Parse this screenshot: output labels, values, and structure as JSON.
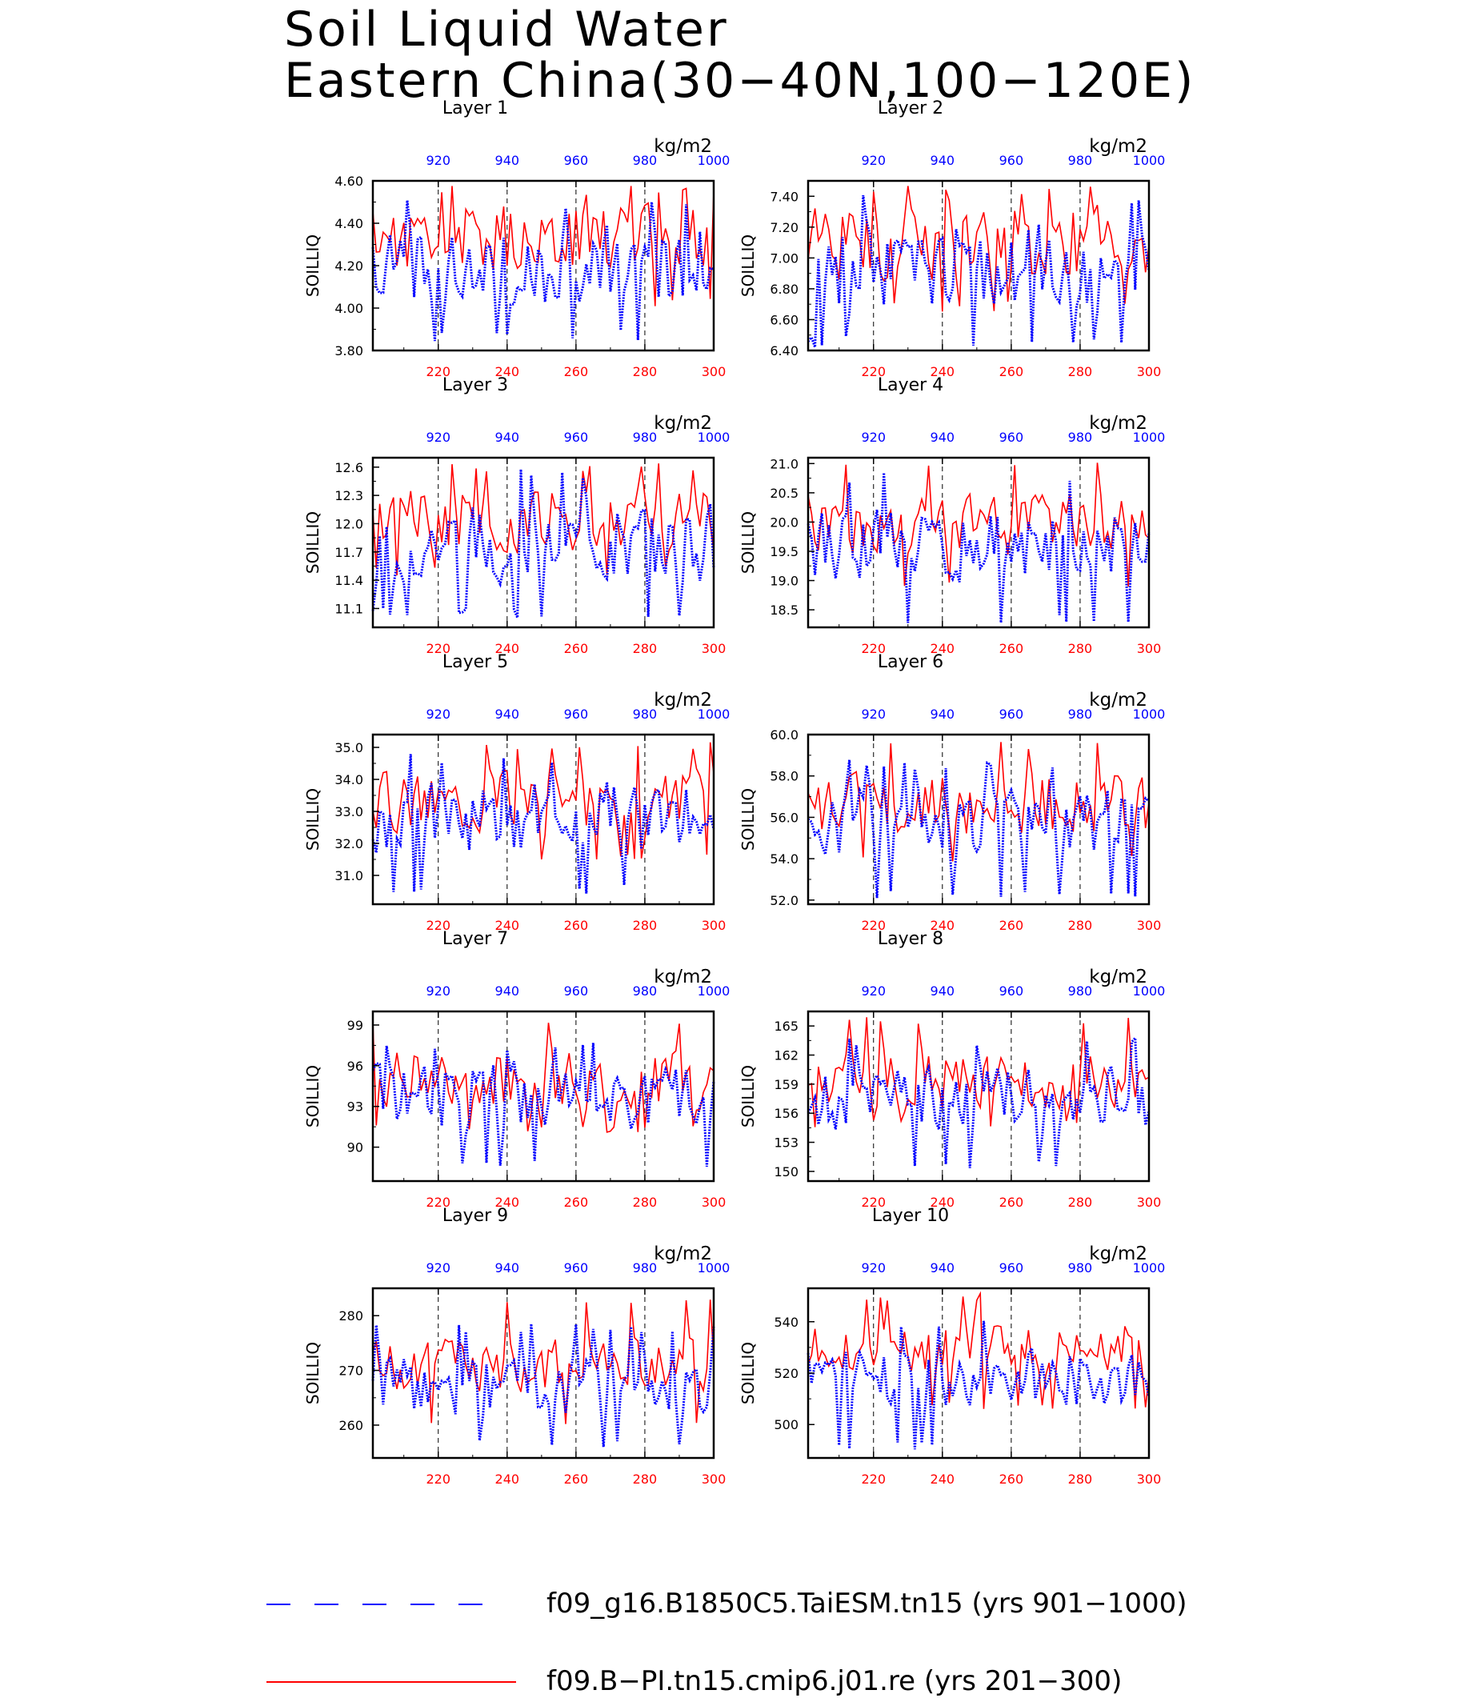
{
  "title": {
    "line1": "Soil Liquid Water",
    "line2": "Eastern China(30−40N,100−120E)"
  },
  "colors": {
    "red_series": "#ff0000",
    "blue_series": "#0000ff",
    "frame": "#000000"
  },
  "legend": {
    "blue_label": "f09_g16.B1850C5.TaiESM.tn15 (yrs 901−1000)",
    "red_label": "f09.B−PI.tn15.cmip6.j01.re (yrs 201−300)"
  },
  "chart_data": [
    {
      "type": "line",
      "title": "Layer 1",
      "ylabel": "SOILLIQ",
      "units": "kg/m2",
      "ylim": [
        3.8,
        4.6
      ],
      "yticks": [
        "4.60",
        "4.40",
        "4.20",
        "4.00",
        "3.80"
      ],
      "ytick_values": [
        4.6,
        4.4,
        4.2,
        4.0,
        3.8
      ],
      "x_bottom": {
        "range": [
          201,
          300
        ],
        "ticks": [
          220,
          240,
          260,
          280,
          300
        ]
      },
      "x_top": {
        "range": [
          901,
          1000
        ],
        "ticks": [
          920,
          940,
          960,
          980,
          1000
        ]
      },
      "series": [
        {
          "name": "f09.B−PI.tn15.cmip6.j01.re (yrs 201−300)",
          "color": "#ff0000",
          "style": "solid",
          "base": 4.33,
          "amp": 0.12,
          "min": 4.0,
          "max": 4.58,
          "seed": 11
        },
        {
          "name": "f09_g16.B1850C5.TaiESM.tn15 (yrs 901−1000)",
          "color": "#0000ff",
          "style": "dashed",
          "base": 4.2,
          "amp": 0.14,
          "min": 3.84,
          "max": 4.52,
          "seed": 12
        }
      ]
    },
    {
      "type": "line",
      "title": "Layer 2",
      "ylabel": "SOILLIQ",
      "units": "kg/m2",
      "ylim": [
        6.4,
        7.5
      ],
      "yticks": [
        "7.40",
        "7.20",
        "7.00",
        "6.80",
        "6.60",
        "6.40"
      ],
      "ytick_values": [
        7.4,
        7.2,
        7.0,
        6.8,
        6.6,
        6.4
      ],
      "x_bottom": {
        "range": [
          201,
          300
        ],
        "ticks": [
          220,
          240,
          260,
          280,
          300
        ]
      },
      "x_top": {
        "range": [
          901,
          1000
        ],
        "ticks": [
          920,
          940,
          960,
          980,
          1000
        ]
      },
      "series": [
        {
          "name": "f09.B−PI.tn15.cmip6.j01.re (yrs 201−300)",
          "color": "#ff0000",
          "style": "solid",
          "base": 7.1,
          "amp": 0.18,
          "min": 6.65,
          "max": 7.48,
          "seed": 21
        },
        {
          "name": "f09_g16.B1850C5.TaiESM.tn15 (yrs 901−1000)",
          "color": "#0000ff",
          "style": "dashed",
          "base": 6.95,
          "amp": 0.2,
          "min": 6.42,
          "max": 7.42,
          "seed": 22
        }
      ]
    },
    {
      "type": "line",
      "title": "Layer 3",
      "ylabel": "SOILLIQ",
      "units": "kg/m2",
      "ylim": [
        10.9,
        12.7
      ],
      "yticks": [
        "12.6",
        "12.3",
        "12.0",
        "11.7",
        "11.4",
        "11.1"
      ],
      "ytick_values": [
        12.6,
        12.3,
        12.0,
        11.7,
        11.4,
        11.1
      ],
      "x_bottom": {
        "range": [
          201,
          300
        ],
        "ticks": [
          220,
          240,
          260,
          280,
          300
        ]
      },
      "x_top": {
        "range": [
          901,
          1000
        ],
        "ticks": [
          920,
          940,
          960,
          980,
          1000
        ]
      },
      "series": [
        {
          "name": "f09.B−PI.tn15.cmip6.j01.re (yrs 201−300)",
          "color": "#ff0000",
          "style": "solid",
          "base": 12.05,
          "amp": 0.25,
          "min": 11.45,
          "max": 12.65,
          "seed": 31
        },
        {
          "name": "f09_g16.B1850C5.TaiESM.tn15 (yrs 901−1000)",
          "color": "#0000ff",
          "style": "dashed",
          "base": 11.8,
          "amp": 0.3,
          "min": 11.0,
          "max": 12.58,
          "seed": 32
        }
      ]
    },
    {
      "type": "line",
      "title": "Layer 4",
      "ylabel": "SOILLIQ",
      "units": "kg/m2",
      "ylim": [
        18.2,
        21.1
      ],
      "yticks": [
        "21.0",
        "20.5",
        "20.0",
        "19.5",
        "19.0",
        "18.5"
      ],
      "ytick_values": [
        21.0,
        20.5,
        20.0,
        19.5,
        19.0,
        18.5
      ],
      "x_bottom": {
        "range": [
          201,
          300
        ],
        "ticks": [
          220,
          240,
          260,
          280,
          300
        ]
      },
      "x_top": {
        "range": [
          901,
          1000
        ],
        "ticks": [
          920,
          940,
          960,
          980,
          1000
        ]
      },
      "series": [
        {
          "name": "f09.B−PI.tn15.cmip6.j01.re (yrs 201−300)",
          "color": "#ff0000",
          "style": "solid",
          "base": 19.95,
          "amp": 0.4,
          "min": 18.85,
          "max": 21.05,
          "seed": 41
        },
        {
          "name": "f09_g16.B1850C5.TaiESM.tn15 (yrs 901−1000)",
          "color": "#0000ff",
          "style": "dashed",
          "base": 19.6,
          "amp": 0.45,
          "min": 18.25,
          "max": 20.85,
          "seed": 42
        }
      ]
    },
    {
      "type": "line",
      "title": "Layer 5",
      "ylabel": "SOILLIQ",
      "units": "kg/m2",
      "ylim": [
        30.1,
        35.4
      ],
      "yticks": [
        "35.0",
        "34.0",
        "33.0",
        "32.0",
        "31.0"
      ],
      "ytick_values": [
        35.0,
        34.0,
        33.0,
        32.0,
        31.0
      ],
      "x_bottom": {
        "range": [
          201,
          300
        ],
        "ticks": [
          220,
          240,
          260,
          280,
          300
        ]
      },
      "x_top": {
        "range": [
          901,
          1000
        ],
        "ticks": [
          920,
          940,
          960,
          980,
          1000
        ]
      },
      "series": [
        {
          "name": "f09.B−PI.tn15.cmip6.j01.re (yrs 201−300)",
          "color": "#ff0000",
          "style": "solid",
          "base": 33.3,
          "amp": 0.7,
          "min": 31.5,
          "max": 35.2,
          "seed": 51
        },
        {
          "name": "f09_g16.B1850C5.TaiESM.tn15 (yrs 901−1000)",
          "color": "#0000ff",
          "style": "dashed",
          "base": 32.8,
          "amp": 0.8,
          "min": 30.4,
          "max": 34.8,
          "seed": 52
        }
      ]
    },
    {
      "type": "line",
      "title": "Layer 6",
      "ylabel": "SOILLIQ",
      "units": "kg/m2",
      "ylim": [
        51.8,
        60.0
      ],
      "yticks": [
        "60.0",
        "58.0",
        "56.0",
        "54.0",
        "52.0"
      ],
      "ytick_values": [
        60.0,
        58.0,
        56.0,
        54.0,
        52.0
      ],
      "x_bottom": {
        "range": [
          201,
          300
        ],
        "ticks": [
          220,
          240,
          260,
          280,
          300
        ]
      },
      "x_top": {
        "range": [
          901,
          1000
        ],
        "ticks": [
          920,
          940,
          960,
          980,
          1000
        ]
      },
      "series": [
        {
          "name": "f09.B−PI.tn15.cmip6.j01.re (yrs 201−300)",
          "color": "#ff0000",
          "style": "solid",
          "base": 56.6,
          "amp": 1.1,
          "min": 53.8,
          "max": 59.7,
          "seed": 61
        },
        {
          "name": "f09_g16.B1850C5.TaiESM.tn15 (yrs 901−1000)",
          "color": "#0000ff",
          "style": "dashed",
          "base": 55.8,
          "amp": 1.2,
          "min": 52.1,
          "max": 58.8,
          "seed": 62
        }
      ]
    },
    {
      "type": "line",
      "title": "Layer 7",
      "ylabel": "SOILLIQ",
      "units": "kg/m2",
      "ylim": [
        87.5,
        100.0
      ],
      "yticks": [
        "99",
        "96",
        "93",
        "90"
      ],
      "ytick_values": [
        99,
        96,
        93,
        90
      ],
      "x_bottom": {
        "range": [
          201,
          300
        ],
        "ticks": [
          220,
          240,
          260,
          280,
          300
        ]
      },
      "x_top": {
        "range": [
          901,
          1000
        ],
        "ticks": [
          920,
          940,
          960,
          980,
          1000
        ]
      },
      "series": [
        {
          "name": "f09.B−PI.tn15.cmip6.j01.re (yrs 201−300)",
          "color": "#ff0000",
          "style": "solid",
          "base": 95.0,
          "amp": 1.5,
          "min": 91.0,
          "max": 99.6,
          "seed": 71
        },
        {
          "name": "f09_g16.B1850C5.TaiESM.tn15 (yrs 901−1000)",
          "color": "#0000ff",
          "style": "dashed",
          "base": 93.8,
          "amp": 1.8,
          "min": 88.3,
          "max": 97.8,
          "seed": 72
        }
      ]
    },
    {
      "type": "line",
      "title": "Layer 8",
      "ylabel": "SOILLIQ",
      "units": "kg/m2",
      "ylim": [
        149.0,
        166.5
      ],
      "yticks": [
        "165",
        "162",
        "159",
        "156",
        "153",
        "150"
      ],
      "ytick_values": [
        165,
        162,
        159,
        156,
        153,
        150
      ],
      "x_bottom": {
        "range": [
          201,
          300
        ],
        "ticks": [
          220,
          240,
          260,
          280,
          300
        ]
      },
      "x_top": {
        "range": [
          901,
          1000
        ],
        "ticks": [
          920,
          940,
          960,
          980,
          1000
        ]
      },
      "series": [
        {
          "name": "f09.B−PI.tn15.cmip6.j01.re (yrs 201−300)",
          "color": "#ff0000",
          "style": "solid",
          "base": 159.3,
          "amp": 2.0,
          "min": 154.5,
          "max": 166.0,
          "seed": 81
        },
        {
          "name": "f09_g16.B1850C5.TaiESM.tn15 (yrs 901−1000)",
          "color": "#0000ff",
          "style": "dashed",
          "base": 157.5,
          "amp": 2.3,
          "min": 150.1,
          "max": 163.8,
          "seed": 82
        }
      ]
    },
    {
      "type": "line",
      "title": "Layer 9",
      "ylabel": "SOILLIQ",
      "units": "kg/m2",
      "ylim": [
        254.0,
        285.0
      ],
      "yticks": [
        "280",
        "270",
        "260"
      ],
      "ytick_values": [
        280,
        270,
        260
      ],
      "x_bottom": {
        "range": [
          201,
          300
        ],
        "ticks": [
          220,
          240,
          260,
          280,
          300
        ]
      },
      "x_top": {
        "range": [
          901,
          1000
        ],
        "ticks": [
          920,
          940,
          960,
          980,
          1000
        ]
      },
      "series": [
        {
          "name": "f09.B−PI.tn15.cmip6.j01.re (yrs 201−300)",
          "color": "#ff0000",
          "style": "solid",
          "base": 271.0,
          "amp": 3.5,
          "min": 259.5,
          "max": 283.5,
          "seed": 91
        },
        {
          "name": "f09_g16.B1850C5.TaiESM.tn15 (yrs 901−1000)",
          "color": "#0000ff",
          "style": "dashed",
          "base": 267.0,
          "amp": 3.8,
          "min": 256.0,
          "max": 278.5,
          "seed": 92
        }
      ]
    },
    {
      "type": "line",
      "title": "Layer 10",
      "ylabel": "SOILLIQ",
      "units": "kg/m2",
      "ylim": [
        487.0,
        553.0
      ],
      "yticks": [
        "540",
        "520",
        "500"
      ],
      "ytick_values": [
        540,
        520,
        500
      ],
      "x_bottom": {
        "range": [
          201,
          300
        ],
        "ticks": [
          220,
          240,
          260,
          280,
          300
        ]
      },
      "x_top": {
        "range": [
          901,
          1000
        ],
        "ticks": [
          920,
          940,
          960,
          980,
          1000
        ]
      },
      "series": [
        {
          "name": "f09.B−PI.tn15.cmip6.j01.re (yrs 201−300)",
          "color": "#ff0000",
          "style": "solid",
          "base": 530.0,
          "amp": 7.0,
          "min": 506.0,
          "max": 551.0,
          "seed": 101
        },
        {
          "name": "f09_g16.B1850C5.TaiESM.tn15 (yrs 901−1000)",
          "color": "#0000ff",
          "style": "dashed",
          "base": 518.0,
          "amp": 8.0,
          "min": 490.0,
          "max": 541.0,
          "seed": 102
        }
      ]
    }
  ]
}
